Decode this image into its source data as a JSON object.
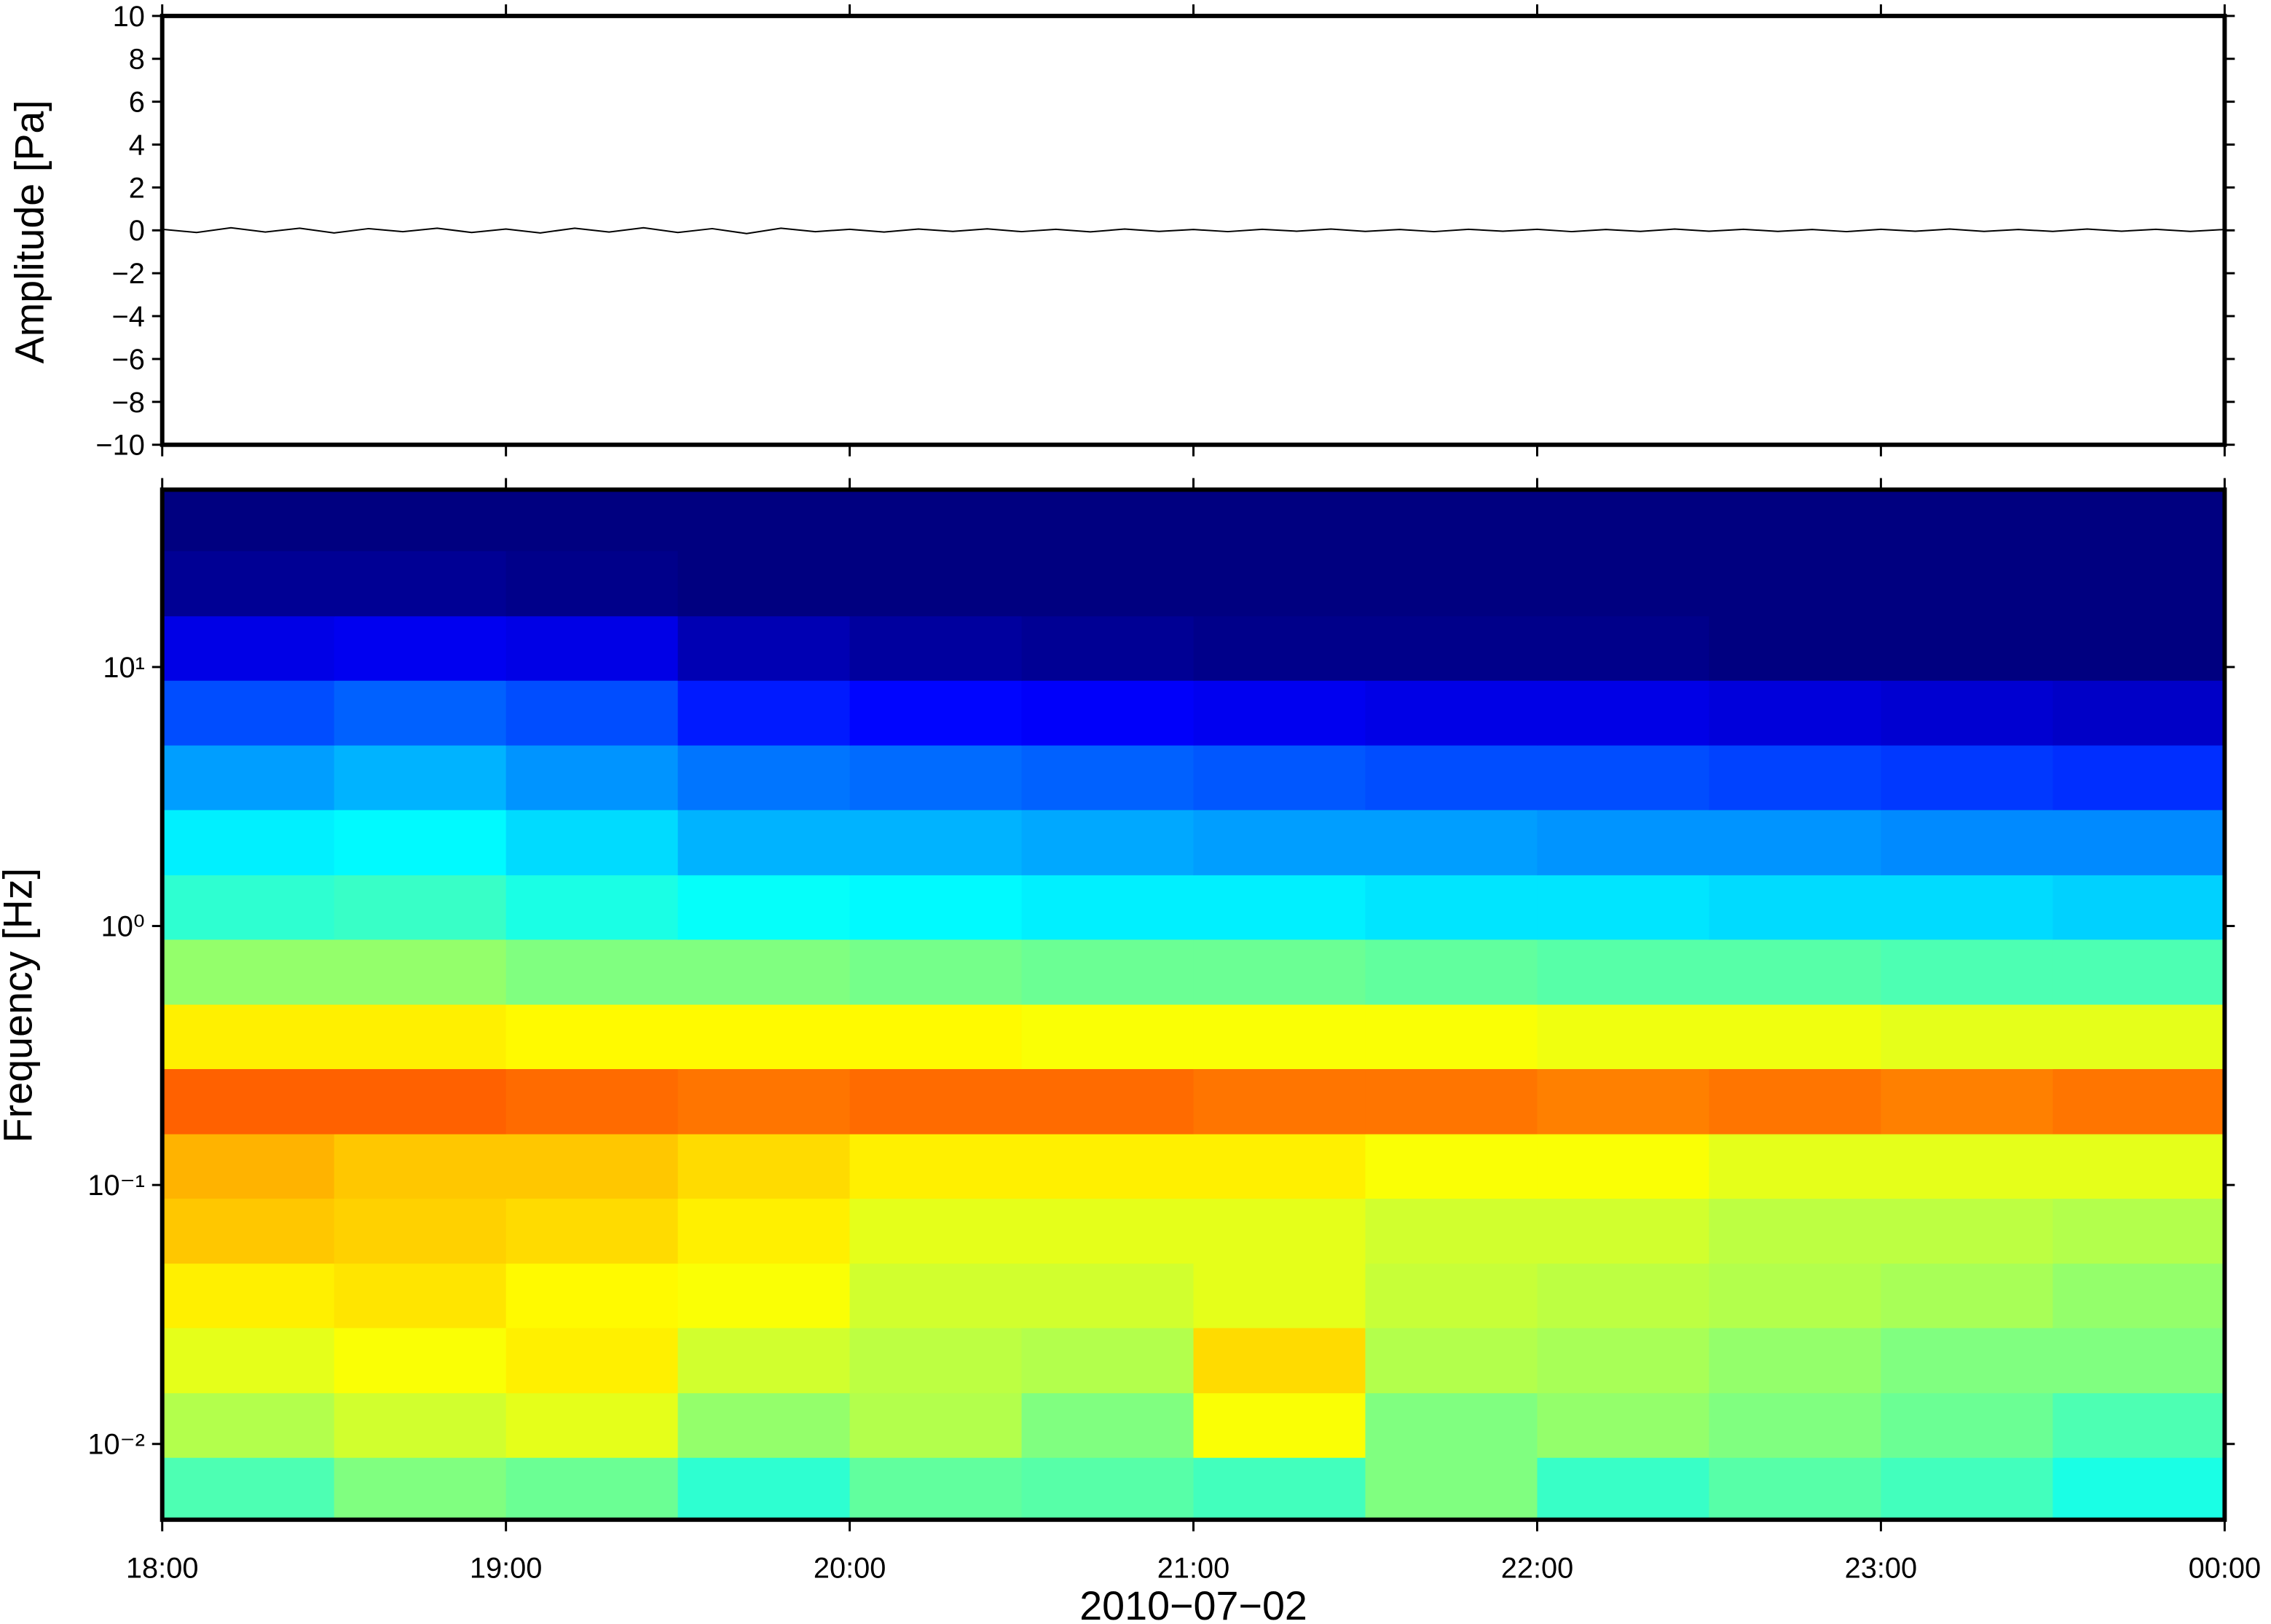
{
  "chart_data": [
    {
      "type": "line",
      "ylabel": "Amplitude [Pa]",
      "color": "#000000",
      "x": [
        "18:00",
        "18:06",
        "18:12",
        "18:18",
        "18:24",
        "18:30",
        "18:36",
        "18:42",
        "18:48",
        "18:54",
        "19:00",
        "19:06",
        "19:12",
        "19:18",
        "19:24",
        "19:30",
        "19:36",
        "19:42",
        "19:48",
        "19:54",
        "20:00",
        "20:06",
        "20:12",
        "20:18",
        "20:24",
        "20:30",
        "20:36",
        "20:42",
        "20:48",
        "20:54",
        "21:00",
        "21:06",
        "21:12",
        "21:18",
        "21:24",
        "21:30",
        "21:36",
        "21:42",
        "21:48",
        "21:54",
        "22:00",
        "22:06",
        "22:12",
        "22:18",
        "22:24",
        "22:30",
        "22:36",
        "22:42",
        "22:48",
        "22:54",
        "23:00",
        "23:06",
        "23:12",
        "23:18",
        "23:24",
        "23:30",
        "23:36",
        "23:42",
        "23:48",
        "23:54",
        "00:00"
      ],
      "values": [
        0.05,
        -0.1,
        0.12,
        -0.08,
        0.1,
        -0.12,
        0.08,
        -0.06,
        0.1,
        -0.1,
        0.06,
        -0.12,
        0.1,
        -0.08,
        0.12,
        -0.1,
        0.08,
        -0.15,
        0.1,
        -0.06,
        0.05,
        -0.08,
        0.06,
        -0.05,
        0.07,
        -0.06,
        0.05,
        -0.07,
        0.06,
        -0.05,
        0.04,
        -0.06,
        0.05,
        -0.04,
        0.06,
        -0.05,
        0.04,
        -0.06,
        0.05,
        -0.04,
        0.05,
        -0.06,
        0.04,
        -0.05,
        0.06,
        -0.04,
        0.05,
        -0.05,
        0.04,
        -0.06,
        0.05,
        -0.04,
        0.06,
        -0.05,
        0.04,
        -0.05,
        0.06,
        -0.04,
        0.05,
        -0.05,
        0.04
      ],
      "ylim": [
        -10,
        10
      ],
      "yticks": [
        {
          "value": -10,
          "label": "−10"
        },
        {
          "value": -8,
          "label": "−8"
        },
        {
          "value": -6,
          "label": "−6"
        },
        {
          "value": -4,
          "label": "−4"
        },
        {
          "value": -2,
          "label": "−2"
        },
        0,
        2,
        4,
        6,
        8,
        10
      ]
    },
    {
      "type": "heatmap",
      "ylabel": "Frequency [Hz]",
      "xlabel": "2010−07−02",
      "colormap": "jet",
      "log_y": true,
      "xticks": [
        "18:00",
        "19:00",
        "20:00",
        "21:00",
        "22:00",
        "23:00",
        "00:00"
      ],
      "xbins": [
        "18:00",
        "18:30",
        "19:00",
        "19:30",
        "20:00",
        "20:30",
        "21:00",
        "21:30",
        "22:00",
        "22:30",
        "23:00",
        "23:30",
        "00:00"
      ],
      "ybins": [
        0.0051,
        0.0089,
        0.0158,
        0.0282,
        0.05,
        0.0891,
        0.158,
        0.282,
        0.5,
        0.891,
        1.58,
        2.82,
        5.01,
        8.91,
        15.8,
        28.2,
        48.4
      ],
      "ylim": [
        0.0051,
        48.4
      ],
      "yticks": [
        {
          "value": 0.01,
          "label": "10⁻²"
        },
        {
          "value": 0.1,
          "label": "10⁻¹"
        },
        {
          "value": 1,
          "label": "10⁰"
        },
        {
          "value": 10,
          "label": "10¹"
        }
      ],
      "zlim": [
        0,
        1
      ],
      "z": [
        [
          0.45,
          0.5,
          0.48,
          0.42,
          0.47,
          0.46,
          0.44,
          0.5,
          0.43,
          0.46,
          0.44,
          0.4
        ],
        [
          0.55,
          0.58,
          0.6,
          0.52,
          0.55,
          0.5,
          0.62,
          0.5,
          0.52,
          0.5,
          0.48,
          0.45
        ],
        [
          0.6,
          0.62,
          0.64,
          0.58,
          0.56,
          0.55,
          0.66,
          0.55,
          0.54,
          0.52,
          0.5,
          0.5
        ],
        [
          0.64,
          0.65,
          0.63,
          0.62,
          0.58,
          0.58,
          0.6,
          0.57,
          0.56,
          0.55,
          0.54,
          0.52
        ],
        [
          0.68,
          0.67,
          0.66,
          0.64,
          0.6,
          0.6,
          0.6,
          0.58,
          0.58,
          0.56,
          0.56,
          0.55
        ],
        [
          0.7,
          0.68,
          0.68,
          0.66,
          0.64,
          0.64,
          0.64,
          0.62,
          0.62,
          0.6,
          0.6,
          0.6
        ],
        [
          0.78,
          0.78,
          0.77,
          0.76,
          0.77,
          0.77,
          0.76,
          0.76,
          0.75,
          0.76,
          0.75,
          0.76
        ],
        [
          0.64,
          0.64,
          0.63,
          0.63,
          0.63,
          0.62,
          0.62,
          0.62,
          0.61,
          0.61,
          0.6,
          0.6
        ],
        [
          0.52,
          0.52,
          0.5,
          0.5,
          0.49,
          0.48,
          0.48,
          0.47,
          0.46,
          0.46,
          0.45,
          0.45
        ],
        [
          0.42,
          0.43,
          0.4,
          0.38,
          0.37,
          0.36,
          0.36,
          0.35,
          0.35,
          0.34,
          0.34,
          0.33
        ],
        [
          0.36,
          0.37,
          0.34,
          0.3,
          0.3,
          0.29,
          0.28,
          0.28,
          0.27,
          0.27,
          0.26,
          0.26
        ],
        [
          0.28,
          0.3,
          0.27,
          0.24,
          0.23,
          0.22,
          0.21,
          0.2,
          0.2,
          0.19,
          0.18,
          0.17
        ],
        [
          0.2,
          0.22,
          0.2,
          0.15,
          0.13,
          0.12,
          0.11,
          0.1,
          0.1,
          0.09,
          0.08,
          0.07
        ],
        [
          0.1,
          0.11,
          0.1,
          0.05,
          0.03,
          0.02,
          0.01,
          0.01,
          0.01,
          0,
          0,
          0
        ],
        [
          0.02,
          0.02,
          0.01,
          0,
          0,
          0,
          0,
          0,
          0,
          0,
          0,
          0
        ],
        [
          0,
          0,
          0,
          0,
          0,
          0,
          0,
          0,
          0,
          0,
          0,
          0
        ]
      ]
    }
  ]
}
